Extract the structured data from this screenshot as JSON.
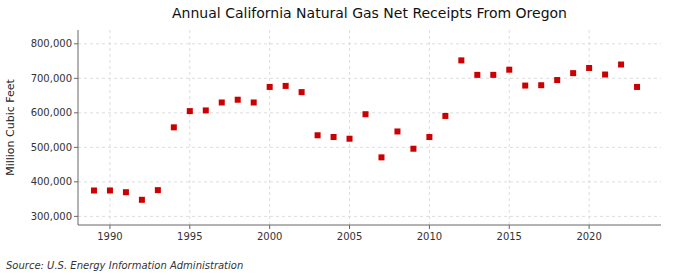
{
  "chart_data": {
    "type": "scatter",
    "title": "Annual California Natural Gas Net Receipts From Oregon",
    "y_label": "Million Cubic Feet",
    "annotations": [
      "Source: U.S. Energy Information Administration"
    ],
    "x": [
      1989,
      1990,
      1991,
      1992,
      1993,
      1994,
      1995,
      1996,
      1997,
      1998,
      1999,
      2000,
      2001,
      2002,
      2003,
      2004,
      2005,
      2006,
      2007,
      2008,
      2009,
      2010,
      2011,
      2012,
      2013,
      2014,
      2015,
      2016,
      2017,
      2018,
      2019,
      2020,
      2021,
      2022,
      2023
    ],
    "values": [
      375000,
      375000,
      370000,
      348000,
      376000,
      558000,
      605000,
      607000,
      630000,
      638000,
      630000,
      675000,
      678000,
      660000,
      535000,
      530000,
      525000,
      596000,
      471000,
      546000,
      496000,
      530000,
      591000,
      752000,
      710000,
      710000,
      725000,
      679000,
      680000,
      695000,
      715000,
      730000,
      711000,
      740000,
      675000
    ],
    "color": "#cc0000",
    "marker": "square",
    "xlim": [
      1988.0,
      2024.5
    ],
    "ylim": [
      275000,
      840000
    ],
    "xticks": [
      1990,
      1995,
      2000,
      2005,
      2010,
      2015,
      2020
    ],
    "yticks": [
      {
        "value": 300000,
        "label": "300,000"
      },
      {
        "value": 400000,
        "label": "400,000"
      },
      {
        "value": 500000,
        "label": "500,000"
      },
      {
        "value": 600000,
        "label": "600,000"
      },
      {
        "value": 700000,
        "label": "700,000"
      },
      {
        "value": 800000,
        "label": "800,000"
      }
    ],
    "grid": true
  }
}
